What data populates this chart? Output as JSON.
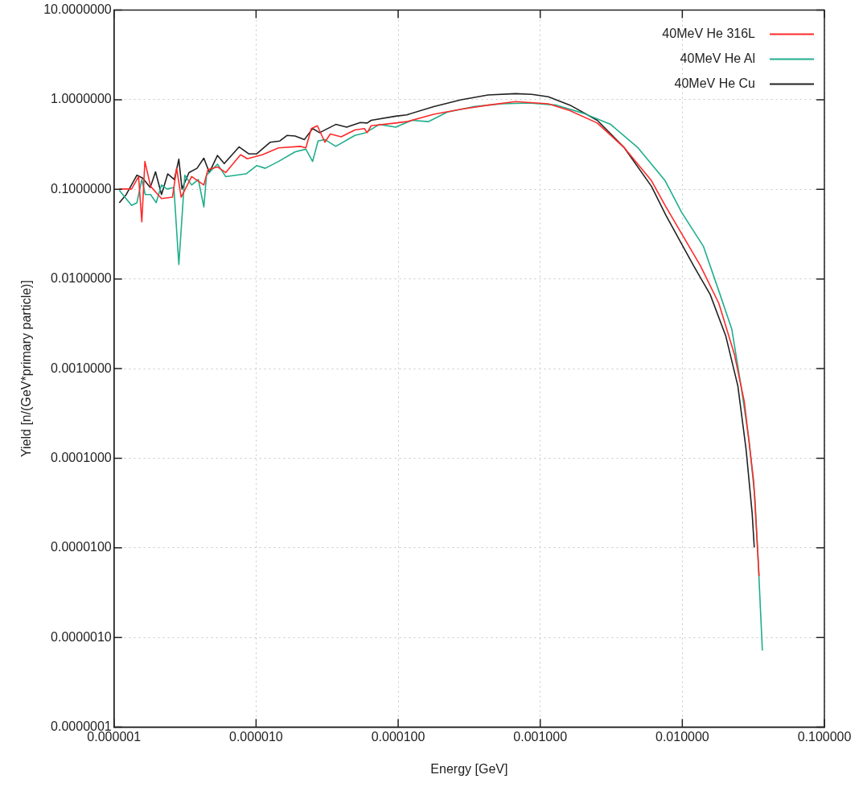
{
  "chart_data": {
    "type": "line",
    "xlabel": "Energy [GeV]",
    "ylabel": "Yield [n/(GeV*primary particle)]",
    "log": "xy",
    "grid": true,
    "legend": "top right",
    "xlim": [
      1e-06,
      0.1
    ],
    "ylim": [
      1e-07,
      10
    ],
    "xticks": [
      {
        "value": 1e-06,
        "label": "0.000001"
      },
      {
        "value": 1e-05,
        "label": "0.000010"
      },
      {
        "value": 0.0001,
        "label": "0.000100"
      },
      {
        "value": 0.001,
        "label": "0.001000"
      },
      {
        "value": 0.01,
        "label": "0.010000"
      },
      {
        "value": 0.1,
        "label": "0.100000"
      }
    ],
    "yticks": [
      {
        "value": 1e-07,
        "label": "0.0000001"
      },
      {
        "value": 1e-06,
        "label": "0.0000010"
      },
      {
        "value": 1e-05,
        "label": "0.0000100"
      },
      {
        "value": 0.0001,
        "label": "0.0001000"
      },
      {
        "value": 0.001,
        "label": "0.0010000"
      },
      {
        "value": 0.01,
        "label": "0.0100000"
      },
      {
        "value": 0.1,
        "label": "0.1000000"
      },
      {
        "value": 1,
        "label": "1.0000000"
      },
      {
        "value": 10,
        "label": "10.0000000"
      }
    ],
    "series": [
      {
        "name": "40MeV He 316L",
        "color": "#ff2a2a",
        "x": [
          1.09e-06,
          1.33e-06,
          1.49e-06,
          1.57e-06,
          1.65e-06,
          1.81e-06,
          2.16e-06,
          2.58e-06,
          2.76e-06,
          2.97e-06,
          3.52e-06,
          4.29e-06,
          4.58e-06,
          5.35e-06,
          6.11e-06,
          7.78e-06,
          8.68e-06,
          1.11e-05,
          1.44e-05,
          2.05e-05,
          2.24e-05,
          2.45e-05,
          2.7e-05,
          3.05e-05,
          3.33e-05,
          3.97e-05,
          4.96e-05,
          5.79e-05,
          6.05e-05,
          6.46e-05,
          9.61e-05,
          0.000115,
          0.000178,
          0.000277,
          0.00043,
          0.00067,
          0.00114,
          0.00162,
          0.00252,
          0.00391,
          0.00607,
          0.00757,
          0.0134,
          0.0181,
          0.0233,
          0.0273,
          0.0318,
          0.0347
        ],
        "values": [
          0.101,
          0.101,
          0.139,
          0.0434,
          0.205,
          0.108,
          0.0789,
          0.0818,
          0.172,
          0.0818,
          0.139,
          0.112,
          0.166,
          0.178,
          0.154,
          0.244,
          0.22,
          0.244,
          0.291,
          0.302,
          0.291,
          0.477,
          0.513,
          0.336,
          0.415,
          0.386,
          0.461,
          0.477,
          0.429,
          0.513,
          0.55,
          0.57,
          0.69,
          0.783,
          0.871,
          0.953,
          0.901,
          0.755,
          0.55,
          0.291,
          0.125,
          0.0662,
          0.0141,
          0.00532,
          0.00143,
          0.000429,
          5.5e-05,
          4.82e-06
        ]
      },
      {
        "name": "40MeV He Al",
        "color": "#1fae8c",
        "x": [
          1.09e-06,
          1.33e-06,
          1.45e-06,
          1.57e-06,
          1.66e-06,
          1.81e-06,
          1.98e-06,
          2.16e-06,
          2.36e-06,
          2.64e-06,
          2.86e-06,
          3.15e-06,
          3.52e-06,
          3.92e-06,
          4.29e-06,
          4.48e-06,
          5.35e-06,
          6.11e-06,
          8.5e-06,
          1.01e-05,
          1.16e-05,
          1.44e-05,
          1.88e-05,
          2.24e-05,
          2.5e-05,
          2.73e-05,
          3.05e-05,
          3.64e-05,
          4.96e-05,
          5.91e-05,
          7.38e-05,
          9.61e-05,
          0.000125,
          0.000163,
          0.000222,
          0.000346,
          0.000537,
          0.000834,
          0.0013,
          0.00202,
          0.00313,
          0.00488,
          0.00757,
          0.00987,
          0.0141,
          0.0181,
          0.0223,
          0.0259,
          0.0295,
          0.0324,
          0.0342,
          0.0366
        ],
        "values": [
          0.0975,
          0.0662,
          0.071,
          0.129,
          0.0877,
          0.0877,
          0.071,
          0.112,
          0.101,
          0.105,
          0.0145,
          0.144,
          0.112,
          0.129,
          0.0638,
          0.144,
          0.191,
          0.139,
          0.149,
          0.184,
          0.172,
          0.205,
          0.262,
          0.281,
          0.205,
          0.347,
          0.36,
          0.302,
          0.4,
          0.429,
          0.531,
          0.494,
          0.59,
          0.57,
          0.729,
          0.84,
          0.901,
          0.92,
          0.871,
          0.705,
          0.531,
          0.291,
          0.125,
          0.0558,
          0.023,
          0.00731,
          0.00276,
          0.000641,
          0.000158,
          3.68e-05,
          7.2e-06,
          7.16e-07
        ]
      },
      {
        "name": "40MeV He Cu",
        "color": "#222222",
        "x": [
          1.09e-06,
          1.22e-06,
          1.45e-06,
          1.59e-06,
          1.8e-06,
          1.96e-06,
          2.16e-06,
          2.39e-06,
          2.66e-06,
          2.86e-06,
          3.01e-06,
          3.37e-06,
          3.84e-06,
          4.29e-06,
          4.69e-06,
          5.35e-06,
          5.97e-06,
          7.6e-06,
          8.88e-06,
          1.01e-05,
          1.26e-05,
          1.47e-05,
          1.65e-05,
          1.88e-05,
          2.19e-05,
          2.5e-05,
          2.8e-05,
          3.64e-05,
          4.34e-05,
          5.42e-05,
          6.05e-05,
          6.46e-05,
          9.61e-05,
          0.000115,
          0.000178,
          0.000277,
          0.00043,
          0.00067,
          0.000873,
          0.00114,
          0.00162,
          0.00252,
          0.00391,
          0.00607,
          0.00767,
          0.012,
          0.0157,
          0.0202,
          0.0246,
          0.0281,
          0.031,
          0.0321
        ],
        "values": [
          0.071,
          0.0877,
          0.144,
          0.134,
          0.105,
          0.157,
          0.0877,
          0.149,
          0.129,
          0.217,
          0.101,
          0.154,
          0.172,
          0.223,
          0.154,
          0.239,
          0.194,
          0.298,
          0.249,
          0.249,
          0.336,
          0.347,
          0.4,
          0.394,
          0.36,
          0.477,
          0.429,
          0.531,
          0.494,
          0.558,
          0.55,
          0.59,
          0.656,
          0.679,
          0.84,
          1.0,
          1.13,
          1.17,
          1.15,
          1.08,
          0.871,
          0.59,
          0.291,
          0.108,
          0.0513,
          0.0141,
          0.00673,
          0.00233,
          0.000641,
          0.000126,
          2.46e-05,
          1.01e-05
        ]
      }
    ]
  }
}
